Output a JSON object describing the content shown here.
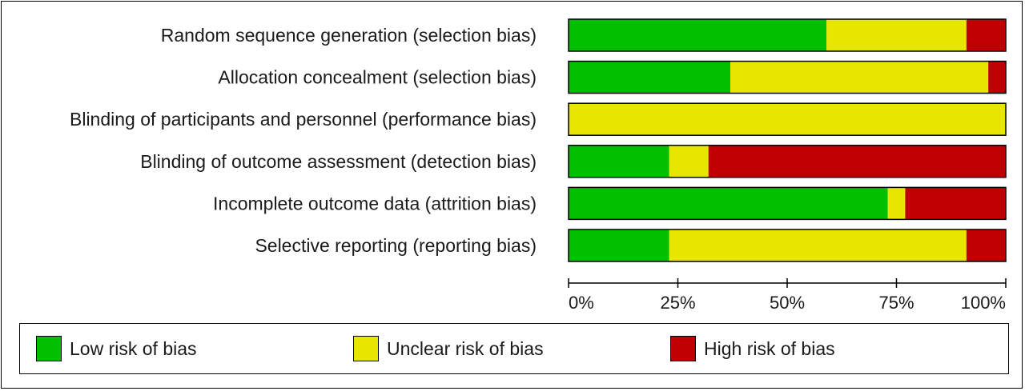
{
  "chart_data": {
    "type": "bar",
    "orientation": "horizontal",
    "stacked": true,
    "categories": [
      "Random sequence generation (selection bias)",
      "Allocation concealment (selection bias)",
      "Blinding of participants and personnel (performance bias)",
      "Blinding of outcome assessment (detection bias)",
      "Incomplete outcome data (attrition bias)",
      "Selective reporting (reporting bias)"
    ],
    "series": [
      {
        "name": "Low risk of bias",
        "color": "#00c000",
        "values": [
          59,
          37,
          0,
          23,
          73,
          23
        ]
      },
      {
        "name": "Unclear risk of bias",
        "color": "#e6e600",
        "values": [
          32,
          59,
          100,
          9,
          4,
          68
        ]
      },
      {
        "name": "High risk of bias",
        "color": "#c00000",
        "values": [
          9,
          4,
          0,
          68,
          23,
          9
        ]
      }
    ],
    "xlim": [
      0,
      100
    ],
    "xticks": [
      "0%",
      "25%",
      "50%",
      "75%",
      "100%"
    ],
    "legend_position": "bottom",
    "grid": false
  }
}
